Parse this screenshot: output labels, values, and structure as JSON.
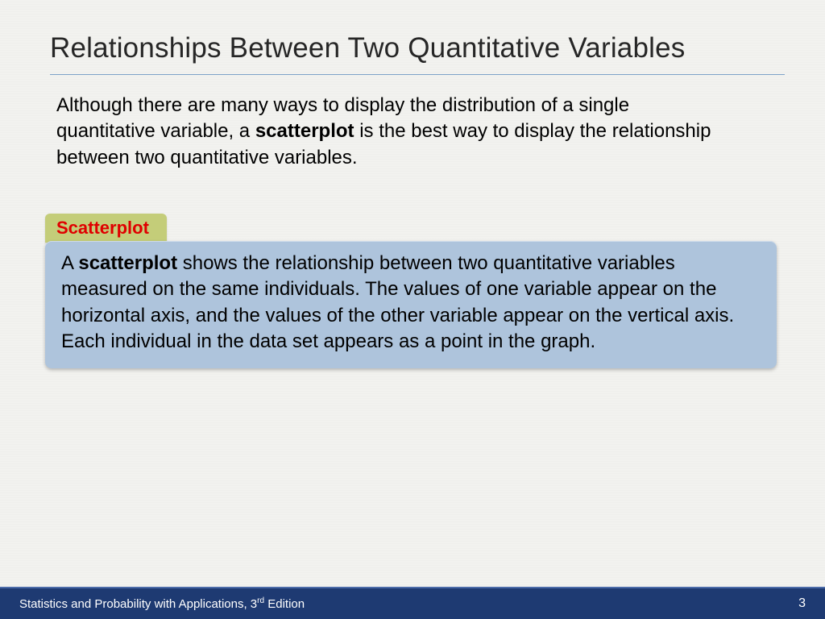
{
  "title": "Relationships Between Two Quantitative Variables",
  "intro": {
    "pre": "Although there are many ways to display the distribution of a single quantitative variable, a ",
    "bold": "scatterplot",
    "post": " is the best way to display the relationship between two quantitative variables."
  },
  "tag_label": "Scatterplot",
  "definition": {
    "pre": "A ",
    "bold": "scatterplot",
    "post": " shows the relationship between two quantitative variables measured on the same individuals. The values of one variable appear on the horizontal axis, and the values of the other variable appear on the vertical axis. Each individual in the data set appears as a point in the graph."
  },
  "footer": {
    "book_pre": "Statistics and Probability with Applications, 3",
    "book_sup": "rd",
    "book_post": " Edition",
    "page": "3"
  },
  "colors": {
    "background": "#f2f2ef",
    "title_underline": "#7da2c8",
    "tag_bg": "#c4cd79",
    "tag_text": "#e00000",
    "def_bg": "#aec4dc",
    "footer_bg": "#1e3a72",
    "footer_border": "#4a6aa8"
  }
}
